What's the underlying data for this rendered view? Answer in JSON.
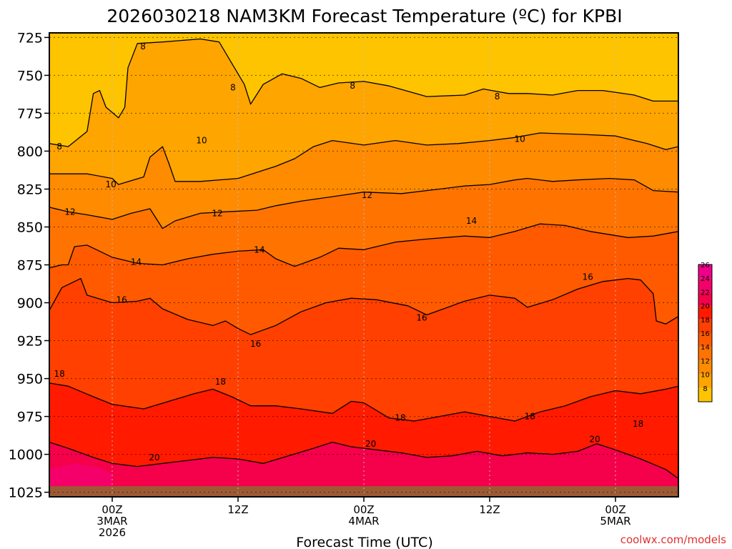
{
  "chart_data": {
    "type": "heatmap",
    "title": "2026030218 NAM3KM Forecast Temperature (ºC) for KPBI",
    "xlabel": "Forecast Time (UTC)",
    "ylabel": "",
    "credit": "coolwx.com/models",
    "x_range_hours": [
      -10,
      90
    ],
    "y_range_hPa": [
      722,
      1028
    ],
    "y_axis_inverted": true,
    "x_ticks": [
      {
        "hour": 0,
        "lines": [
          "00Z",
          "3MAR",
          "2026"
        ]
      },
      {
        "hour": 20,
        "lines": [
          "12Z"
        ]
      },
      {
        "hour": 40,
        "lines": [
          "00Z",
          "4MAR"
        ]
      },
      {
        "hour": 60,
        "lines": [
          "12Z"
        ]
      },
      {
        "hour": 80,
        "lines": [
          "00Z",
          "5MAR"
        ]
      }
    ],
    "y_ticks": [
      725,
      750,
      775,
      800,
      825,
      850,
      875,
      900,
      925,
      950,
      975,
      1000,
      1025
    ],
    "ground_top_hPa": 1021,
    "fill_levels": [
      {
        "min": 6,
        "max": 8,
        "color": "#FFC400"
      },
      {
        "min": 8,
        "max": 10,
        "color": "#FFA500"
      },
      {
        "min": 10,
        "max": 12,
        "color": "#FF8B00"
      },
      {
        "min": 12,
        "max": 14,
        "color": "#FF7400"
      },
      {
        "min": 14,
        "max": 16,
        "color": "#FF5A00"
      },
      {
        "min": 16,
        "max": 18,
        "color": "#FF4000"
      },
      {
        "min": 18,
        "max": 20,
        "color": "#FF1A00"
      },
      {
        "min": 20,
        "max": 22,
        "color": "#F5004A"
      },
      {
        "min": 22,
        "max": 24,
        "color": "#F5006A"
      },
      {
        "min": 24,
        "max": 26,
        "color": "#F0008A"
      },
      {
        "min": 26,
        "max": 28,
        "color": "#E8009A"
      }
    ],
    "colorbar_labels": [
      "8",
      "10",
      "12",
      "14",
      "16",
      "18",
      "20",
      "22",
      "24",
      "26"
    ],
    "contour_lines": [
      {
        "level": "8",
        "points": [
          [
            -10,
            795
          ],
          [
            -7,
            797
          ],
          [
            -4,
            787
          ],
          [
            -3,
            762
          ],
          [
            -2,
            760
          ],
          [
            -1,
            771
          ],
          [
            1,
            778
          ],
          [
            2,
            771
          ],
          [
            2.5,
            745
          ],
          [
            4,
            729
          ],
          [
            8,
            728
          ],
          [
            14,
            726
          ],
          [
            17,
            728
          ],
          [
            19,
            742
          ],
          [
            21,
            756
          ],
          [
            22,
            769
          ],
          [
            24,
            756
          ],
          [
            27,
            749
          ],
          [
            30,
            752
          ],
          [
            33,
            758
          ],
          [
            36,
            755
          ],
          [
            40,
            754
          ],
          [
            44,
            757
          ],
          [
            50,
            764
          ],
          [
            56,
            763
          ],
          [
            59,
            759
          ],
          [
            63,
            762
          ],
          [
            66,
            762
          ],
          [
            70,
            763
          ],
          [
            74,
            760
          ],
          [
            78,
            760
          ],
          [
            83,
            763
          ],
          [
            86,
            767
          ],
          [
            90,
            767
          ]
        ]
      },
      {
        "level": "10",
        "points": [
          [
            -10,
            815
          ],
          [
            -4,
            815
          ],
          [
            0,
            818
          ],
          [
            1,
            822
          ],
          [
            5,
            817
          ],
          [
            6,
            804
          ],
          [
            8,
            797
          ],
          [
            9,
            808
          ],
          [
            10,
            820
          ],
          [
            14,
            820
          ],
          [
            20,
            818
          ],
          [
            26,
            810
          ],
          [
            29,
            805
          ],
          [
            32,
            797
          ],
          [
            35,
            793
          ],
          [
            40,
            796
          ],
          [
            45,
            793
          ],
          [
            50,
            796
          ],
          [
            55,
            795
          ],
          [
            60,
            793
          ],
          [
            64,
            791
          ],
          [
            68,
            788
          ],
          [
            75,
            789
          ],
          [
            80,
            790
          ],
          [
            85,
            795
          ],
          [
            88,
            799
          ],
          [
            90,
            797
          ]
        ]
      },
      {
        "level": "12",
        "points": [
          [
            -10,
            837
          ],
          [
            -7,
            840
          ],
          [
            -4,
            842
          ],
          [
            0,
            845
          ],
          [
            3,
            841
          ],
          [
            6,
            838
          ],
          [
            8,
            851
          ],
          [
            10,
            846
          ],
          [
            14,
            841
          ],
          [
            18,
            840
          ],
          [
            23,
            839
          ],
          [
            26,
            836
          ],
          [
            30,
            833
          ],
          [
            35,
            830
          ],
          [
            40,
            827
          ],
          [
            46,
            828
          ],
          [
            52,
            825
          ],
          [
            56,
            823
          ],
          [
            60,
            822
          ],
          [
            64,
            819
          ],
          [
            66,
            818
          ],
          [
            70,
            820
          ],
          [
            74,
            819
          ],
          [
            79,
            818
          ],
          [
            83,
            819
          ],
          [
            86,
            826
          ],
          [
            90,
            827
          ]
        ]
      },
      {
        "level": "14",
        "points": [
          [
            -10,
            877
          ],
          [
            -8,
            875
          ],
          [
            -7,
            875
          ],
          [
            -6,
            863
          ],
          [
            -4,
            862
          ],
          [
            0,
            870
          ],
          [
            4,
            874
          ],
          [
            8,
            875
          ],
          [
            12,
            871
          ],
          [
            16,
            868
          ],
          [
            20,
            866
          ],
          [
            24,
            865
          ],
          [
            26,
            871
          ],
          [
            29,
            876
          ],
          [
            33,
            870
          ],
          [
            36,
            864
          ],
          [
            40,
            865
          ],
          [
            45,
            860
          ],
          [
            50,
            858
          ],
          [
            56,
            856
          ],
          [
            60,
            857
          ],
          [
            64,
            853
          ],
          [
            68,
            848
          ],
          [
            72,
            849
          ],
          [
            76,
            853
          ],
          [
            82,
            857
          ],
          [
            86,
            856
          ],
          [
            90,
            853
          ]
        ]
      },
      {
        "level": "16",
        "points": [
          [
            -10,
            905
          ],
          [
            -8,
            890
          ],
          [
            -5,
            884
          ],
          [
            -4,
            895
          ],
          [
            0,
            900
          ],
          [
            4,
            899
          ],
          [
            6,
            897
          ],
          [
            8,
            904
          ],
          [
            12,
            911
          ],
          [
            16,
            915
          ],
          [
            18,
            912
          ],
          [
            20,
            917
          ],
          [
            22,
            921
          ],
          [
            24,
            918
          ],
          [
            26,
            915
          ],
          [
            30,
            906
          ],
          [
            34,
            900
          ],
          [
            38,
            897
          ],
          [
            42,
            898
          ],
          [
            47,
            902
          ],
          [
            50,
            908
          ],
          [
            52,
            905
          ],
          [
            56,
            899
          ],
          [
            60,
            895
          ],
          [
            64,
            897
          ],
          [
            66,
            903
          ],
          [
            70,
            898
          ],
          [
            74,
            891
          ],
          [
            78,
            886
          ],
          [
            82,
            884
          ],
          [
            84,
            885
          ],
          [
            86,
            894
          ],
          [
            86.5,
            912
          ],
          [
            88,
            914
          ],
          [
            90,
            909
          ]
        ]
      },
      {
        "level": "18",
        "points": [
          [
            -10,
            953
          ],
          [
            -7,
            955
          ],
          [
            -3,
            962
          ],
          [
            0,
            967
          ],
          [
            5,
            970
          ],
          [
            9,
            965
          ],
          [
            13,
            960
          ],
          [
            16,
            957
          ],
          [
            19,
            962
          ],
          [
            22,
            968
          ],
          [
            26,
            968
          ],
          [
            30,
            970
          ],
          [
            35,
            973
          ],
          [
            38,
            965
          ],
          [
            40,
            966
          ],
          [
            44,
            976
          ],
          [
            48,
            978
          ],
          [
            52,
            975
          ],
          [
            56,
            972
          ],
          [
            60,
            975
          ],
          [
            64,
            978
          ],
          [
            68,
            972
          ],
          [
            72,
            968
          ],
          [
            76,
            962
          ],
          [
            80,
            958
          ],
          [
            84,
            960
          ],
          [
            88,
            957
          ],
          [
            90,
            955
          ]
        ]
      },
      {
        "level": "20",
        "points": [
          [
            -10,
            992
          ],
          [
            -7,
            996
          ],
          [
            -3,
            1002
          ],
          [
            0,
            1006
          ],
          [
            4,
            1008
          ],
          [
            8,
            1006
          ],
          [
            12,
            1004
          ],
          [
            16,
            1002
          ],
          [
            20,
            1003
          ],
          [
            24,
            1006
          ],
          [
            28,
            1001
          ],
          [
            32,
            996
          ],
          [
            35,
            992
          ],
          [
            38,
            995
          ],
          [
            42,
            997
          ],
          [
            46,
            999
          ],
          [
            50,
            1002
          ],
          [
            54,
            1001
          ],
          [
            58,
            998
          ],
          [
            62,
            1001
          ],
          [
            66,
            999
          ],
          [
            70,
            1000
          ],
          [
            74,
            998
          ],
          [
            77,
            993
          ],
          [
            80,
            997
          ],
          [
            84,
            1003
          ],
          [
            88,
            1010
          ],
          [
            90,
            1016
          ]
        ]
      }
    ],
    "contour_labels": [
      {
        "text": "8",
        "hour": 4.9,
        "hPa": 731
      },
      {
        "text": "8",
        "hour": 19.2,
        "hPa": 758
      },
      {
        "text": "8",
        "hour": 38.2,
        "hPa": 757
      },
      {
        "text": "8",
        "hour": 61.2,
        "hPa": 764
      },
      {
        "text": "8",
        "hour": -8.4,
        "hPa": 797
      },
      {
        "text": "10",
        "hour": 14.2,
        "hPa": 793
      },
      {
        "text": "10",
        "hour": 64.8,
        "hPa": 792
      },
      {
        "text": "10",
        "hour": -0.2,
        "hPa": 822
      },
      {
        "text": "12",
        "hour": 40.5,
        "hPa": 829
      },
      {
        "text": "12",
        "hour": -6.7,
        "hPa": 840
      },
      {
        "text": "12",
        "hour": 16.7,
        "hPa": 841
      },
      {
        "text": "14",
        "hour": 57.1,
        "hPa": 846
      },
      {
        "text": "14",
        "hour": 23.4,
        "hPa": 865
      },
      {
        "text": "14",
        "hour": 3.8,
        "hPa": 873
      },
      {
        "text": "16",
        "hour": 75.6,
        "hPa": 883
      },
      {
        "text": "16",
        "hour": 1.5,
        "hPa": 898
      },
      {
        "text": "16",
        "hour": 49.2,
        "hPa": 910
      },
      {
        "text": "16",
        "hour": 22.8,
        "hPa": 927
      },
      {
        "text": "18",
        "hour": -8.4,
        "hPa": 947
      },
      {
        "text": "18",
        "hour": 17.2,
        "hPa": 952
      },
      {
        "text": "18",
        "hour": 45.8,
        "hPa": 976
      },
      {
        "text": "18",
        "hour": 66.4,
        "hPa": 975
      },
      {
        "text": "18",
        "hour": 83.6,
        "hPa": 980
      },
      {
        "text": "20",
        "hour": 76.7,
        "hPa": 990
      },
      {
        "text": "20",
        "hour": 41.1,
        "hPa": 993
      },
      {
        "text": "20",
        "hour": 6.7,
        "hPa": 1002
      }
    ]
  }
}
